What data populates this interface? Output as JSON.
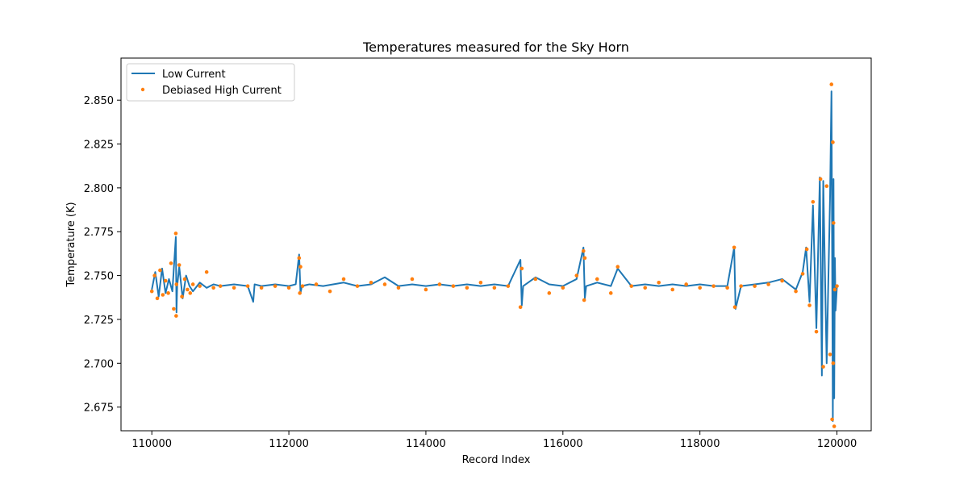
{
  "chart_data": {
    "type": "line",
    "title": "Temperatures measured for the Sky Horn",
    "xlabel": "Record Index",
    "ylabel": "Temperature (K)",
    "xlim": [
      109550,
      120500
    ],
    "ylim": [
      2.6615,
      2.874
    ],
    "x_ticks": [
      110000,
      112000,
      114000,
      116000,
      118000,
      120000
    ],
    "x_tick_labels": [
      "110000",
      "112000",
      "114000",
      "116000",
      "118000",
      "120000"
    ],
    "y_ticks": [
      2.675,
      2.7,
      2.725,
      2.75,
      2.775,
      2.8,
      2.825,
      2.85
    ],
    "y_tick_labels": [
      "2.675",
      "2.700",
      "2.725",
      "2.750",
      "2.775",
      "2.800",
      "2.825",
      "2.850"
    ],
    "legend_position": "upper-left",
    "grid": false,
    "series": [
      {
        "name": "Low Current",
        "style": "line",
        "color": "#1f77b4",
        "x": [
          110000,
          110050,
          110100,
          110150,
          110200,
          110250,
          110300,
          110350,
          110360,
          110370,
          110400,
          110450,
          110500,
          110550,
          110600,
          110700,
          110800,
          110900,
          111000,
          111200,
          111400,
          111480,
          111500,
          111600,
          111800,
          112000,
          112100,
          112150,
          112170,
          112190,
          112300,
          112500,
          112800,
          113000,
          113200,
          113400,
          113600,
          113800,
          114000,
          114200,
          114400,
          114600,
          114800,
          115000,
          115200,
          115380,
          115400,
          115420,
          115600,
          115800,
          116000,
          116200,
          116300,
          116320,
          116340,
          116500,
          116700,
          116800,
          117000,
          117200,
          117400,
          117600,
          117800,
          118000,
          118200,
          118400,
          118500,
          118520,
          118600,
          118800,
          119000,
          119200,
          119400,
          119500,
          119550,
          119600,
          119650,
          119700,
          119750,
          119780,
          119800,
          119850,
          119900,
          119920,
          119940,
          119950,
          119960,
          119970,
          119980,
          120000
        ],
        "values": [
          2.742,
          2.752,
          2.738,
          2.754,
          2.74,
          2.748,
          2.741,
          2.772,
          2.729,
          2.744,
          2.755,
          2.737,
          2.75,
          2.744,
          2.741,
          2.746,
          2.743,
          2.745,
          2.744,
          2.745,
          2.744,
          2.735,
          2.745,
          2.744,
          2.745,
          2.744,
          2.745,
          2.762,
          2.74,
          2.744,
          2.745,
          2.744,
          2.746,
          2.744,
          2.745,
          2.749,
          2.744,
          2.745,
          2.744,
          2.745,
          2.744,
          2.745,
          2.744,
          2.745,
          2.744,
          2.759,
          2.733,
          2.744,
          2.749,
          2.745,
          2.744,
          2.748,
          2.766,
          2.737,
          2.744,
          2.746,
          2.744,
          2.754,
          2.744,
          2.745,
          2.744,
          2.745,
          2.744,
          2.745,
          2.744,
          2.744,
          2.766,
          2.731,
          2.744,
          2.745,
          2.746,
          2.748,
          2.742,
          2.752,
          2.766,
          2.735,
          2.79,
          2.72,
          2.806,
          2.693,
          2.804,
          2.7,
          2.796,
          2.855,
          2.667,
          2.805,
          2.68,
          2.76,
          2.73,
          2.744
        ]
      },
      {
        "name": "Debiased High Current",
        "style": "scatter",
        "color": "#ff7f0e",
        "x": [
          110000,
          110040,
          110080,
          110120,
          110160,
          110200,
          110240,
          110280,
          110320,
          110350,
          110355,
          110360,
          110400,
          110440,
          110480,
          110520,
          110560,
          110600,
          110700,
          110800,
          110900,
          111000,
          111200,
          111400,
          111600,
          111800,
          112000,
          112150,
          112160,
          112170,
          112200,
          112400,
          112600,
          112800,
          113000,
          113200,
          113400,
          113600,
          113800,
          114000,
          114200,
          114400,
          114600,
          114800,
          115000,
          115200,
          115380,
          115400,
          115600,
          115800,
          116000,
          116200,
          116300,
          116310,
          116320,
          116500,
          116700,
          116800,
          117000,
          117200,
          117400,
          117600,
          117800,
          118000,
          118200,
          118400,
          118500,
          118510,
          118600,
          118800,
          119000,
          119200,
          119400,
          119500,
          119560,
          119600,
          119650,
          119700,
          119760,
          119800,
          119850,
          119900,
          119920,
          119930,
          119940,
          119945,
          119950,
          119960,
          119970,
          120000
        ],
        "values": [
          2.741,
          2.75,
          2.737,
          2.753,
          2.739,
          2.747,
          2.74,
          2.757,
          2.731,
          2.774,
          2.727,
          2.745,
          2.756,
          2.738,
          2.748,
          2.742,
          2.74,
          2.745,
          2.744,
          2.752,
          2.743,
          2.744,
          2.743,
          2.744,
          2.743,
          2.744,
          2.743,
          2.76,
          2.74,
          2.755,
          2.744,
          2.745,
          2.741,
          2.748,
          2.744,
          2.746,
          2.745,
          2.743,
          2.748,
          2.742,
          2.745,
          2.744,
          2.743,
          2.746,
          2.743,
          2.744,
          2.732,
          2.754,
          2.748,
          2.74,
          2.743,
          2.75,
          2.764,
          2.736,
          2.76,
          2.748,
          2.74,
          2.755,
          2.744,
          2.743,
          2.746,
          2.742,
          2.745,
          2.743,
          2.744,
          2.743,
          2.766,
          2.732,
          2.744,
          2.744,
          2.745,
          2.747,
          2.741,
          2.751,
          2.765,
          2.733,
          2.792,
          2.718,
          2.805,
          2.698,
          2.801,
          2.705,
          2.859,
          2.668,
          2.826,
          2.7,
          2.78,
          2.664,
          2.742,
          2.744
        ]
      }
    ]
  },
  "legend": {
    "items": [
      "Low Current",
      "Debiased High Current"
    ]
  }
}
